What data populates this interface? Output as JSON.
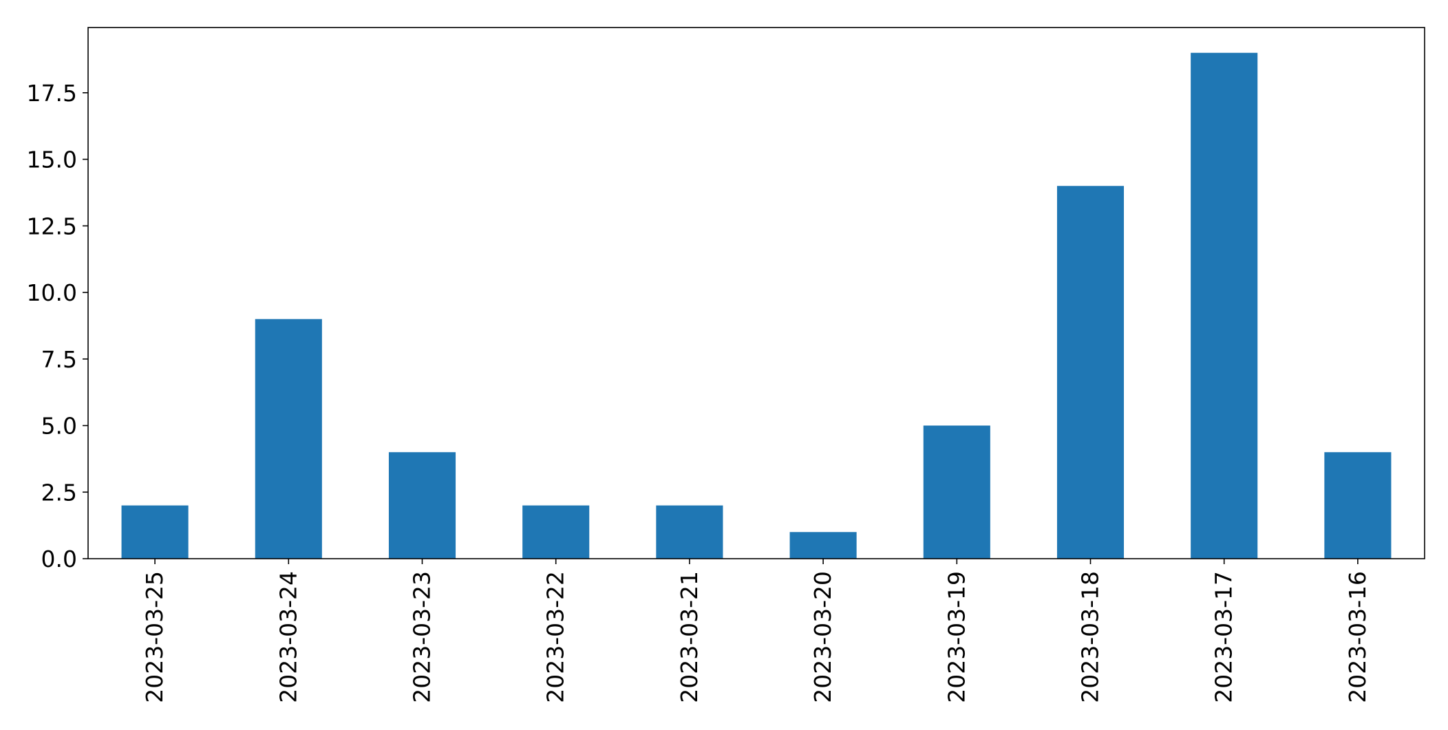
{
  "chart_data": {
    "type": "bar",
    "categories": [
      "2023-03-25",
      "2023-03-24",
      "2023-03-23",
      "2023-03-22",
      "2023-03-21",
      "2023-03-20",
      "2023-03-19",
      "2023-03-18",
      "2023-03-17",
      "2023-03-16"
    ],
    "values": [
      2,
      9,
      4,
      2,
      2,
      1,
      5,
      14,
      19,
      4
    ],
    "title": "",
    "xlabel": "",
    "ylabel": "",
    "ylim": [
      0,
      19.95
    ],
    "yticks": [
      0,
      2.5,
      5,
      7.5,
      10,
      12.5,
      15,
      17.5
    ],
    "ytick_labels": [
      "0.0",
      "2.5",
      "5.0",
      "7.5",
      "10.0",
      "12.5",
      "15.0",
      "17.5"
    ],
    "bar_color": "#1f77b4",
    "grid": false,
    "legend": "none"
  }
}
